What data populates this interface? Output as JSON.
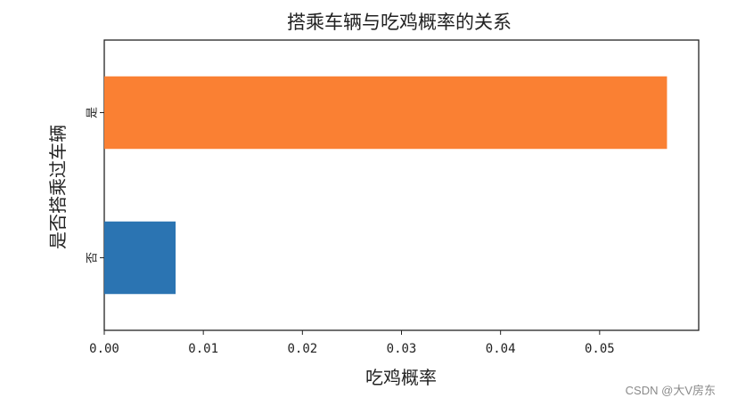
{
  "chart_data": {
    "type": "bar",
    "orientation": "horizontal",
    "title": "搭乘车辆与吃鸡概率的关系",
    "xlabel": "吃鸡概率",
    "ylabel": "是否搭乘过车辆",
    "categories": [
      "否",
      "是"
    ],
    "values": [
      0.0072,
      0.0568
    ],
    "bar_colors": [
      "#2b74b2",
      "#fa8033"
    ],
    "xlim": [
      0,
      0.06
    ],
    "xticks": [
      0.0,
      0.01,
      0.02,
      0.03,
      0.04,
      0.05
    ],
    "xtick_labels": [
      "0.00",
      "0.01",
      "0.02",
      "0.03",
      "0.04",
      "0.05"
    ],
    "grid": false,
    "legend": "none"
  },
  "watermark": "CSDN @大V房东"
}
